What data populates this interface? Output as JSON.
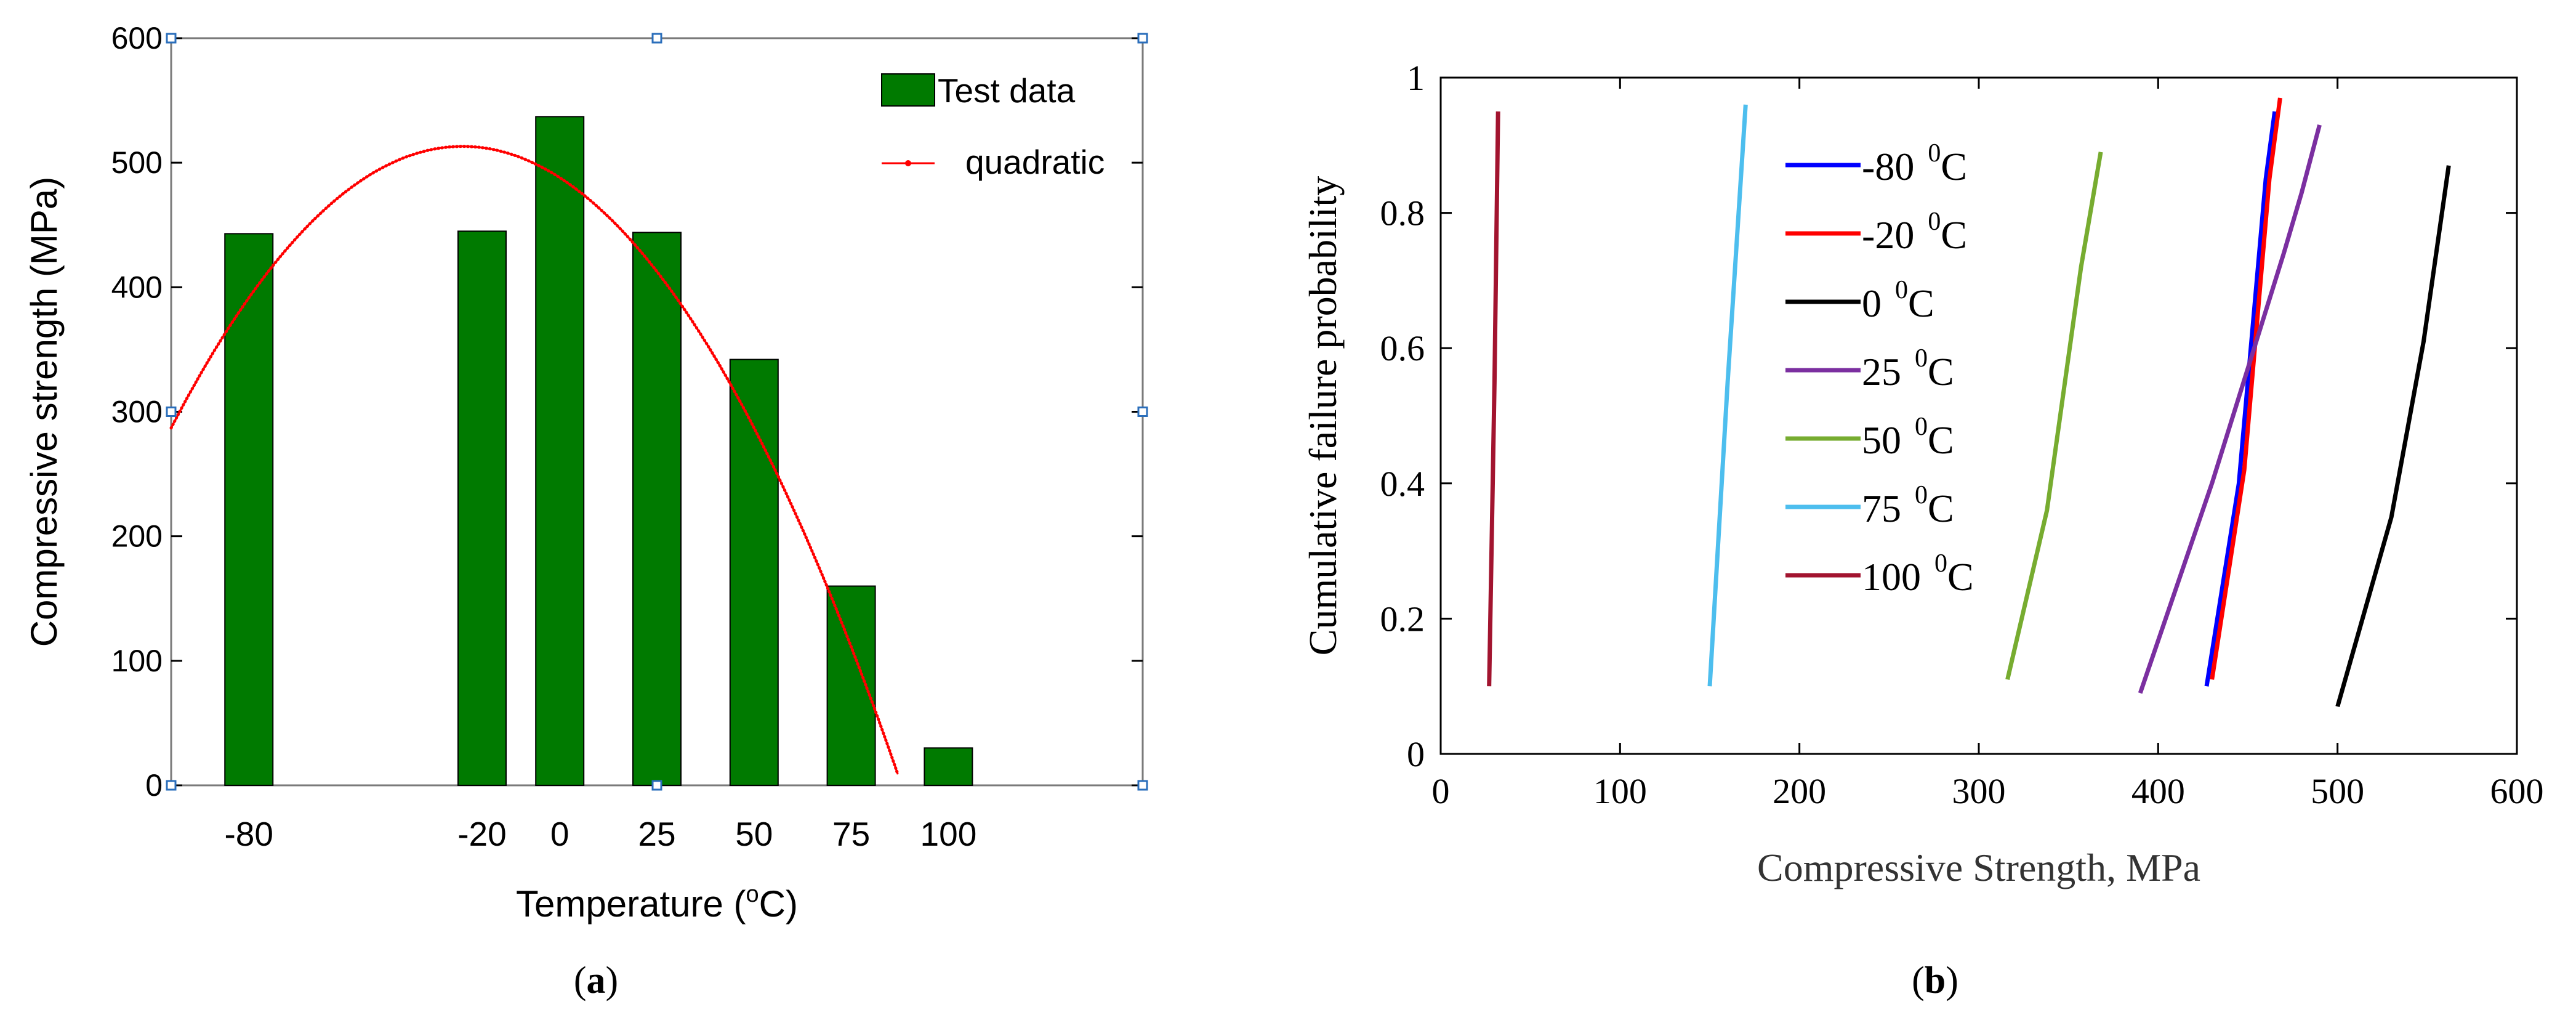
{
  "chart_data": [
    {
      "type": "bar",
      "panel_label": "a",
      "xlabel": "Temperature (",
      "xlabel_sup": "o",
      "xlabel_tail": "C)",
      "ylabel": "Compressive strength (MPa)",
      "ylim": [
        0,
        600
      ],
      "yticks": [
        0,
        100,
        200,
        300,
        400,
        500,
        600
      ],
      "xlim": [
        -100,
        150
      ],
      "categories": [
        "-80",
        "-20",
        "0",
        "25",
        "50",
        "75",
        "100"
      ],
      "x": [
        -80,
        -20,
        0,
        25,
        50,
        75,
        100
      ],
      "values": [
        443,
        445,
        537,
        444,
        342,
        160,
        30
      ],
      "bar_color": "#007a00",
      "legend": {
        "position": "top-right",
        "entries": [
          "Test data",
          "quadratic"
        ]
      },
      "fit": {
        "name": "quadratic",
        "color": "#ff0000",
        "coefficients": [
          -0.0402,
          -2.01,
          488.0
        ],
        "x_range": [
          -100,
          103
        ]
      }
    },
    {
      "type": "line",
      "panel_label": "b",
      "xlabel": "Compressive Strength, MPa",
      "ylabel": "Cumulative failure probability",
      "xlim": [
        0,
        600
      ],
      "ylim": [
        0,
        1
      ],
      "xticks": [
        0,
        100,
        200,
        300,
        400,
        500,
        600
      ],
      "yticks": [
        "0",
        "0.2",
        "0.4",
        "0.6",
        "0.8",
        "1"
      ],
      "legend": {
        "position": "top-left"
      },
      "series": [
        {
          "name": "-80",
          "unit_sup": "0",
          "unit": "C",
          "color": "#0000ff",
          "x": [
            427,
            445,
            460,
            465
          ],
          "y": [
            0.1,
            0.4,
            0.85,
            0.95
          ]
        },
        {
          "name": "-20",
          "unit_sup": "0",
          "unit": "C",
          "color": "#ff0000",
          "x": [
            430,
            448,
            462,
            468
          ],
          "y": [
            0.11,
            0.42,
            0.85,
            0.97
          ]
        },
        {
          "name": "0",
          "unit_sup": "0",
          "unit": "C",
          "color": "#000000",
          "x": [
            500,
            530,
            548,
            562
          ],
          "y": [
            0.07,
            0.35,
            0.61,
            0.87
          ]
        },
        {
          "name": "25",
          "unit_sup": "0",
          "unit": "C",
          "color": "#7b2fa0",
          "x": [
            390,
            430,
            470,
            480,
            490
          ],
          "y": [
            0.09,
            0.4,
            0.74,
            0.83,
            0.93
          ]
        },
        {
          "name": "50",
          "unit_sup": "0",
          "unit": "C",
          "color": "#77ac30",
          "x": [
            316,
            338,
            357,
            368
          ],
          "y": [
            0.11,
            0.36,
            0.72,
            0.89
          ]
        },
        {
          "name": "75",
          "unit_sup": "0",
          "unit": "C",
          "color": "#4dbeee",
          "x": [
            150,
            160,
            170
          ],
          "y": [
            0.1,
            0.55,
            0.96
          ]
        },
        {
          "name": "100",
          "unit_sup": "0",
          "unit": "C",
          "color": "#a2142f",
          "x": [
            27,
            30,
            32
          ],
          "y": [
            0.1,
            0.55,
            0.95
          ]
        }
      ]
    }
  ]
}
